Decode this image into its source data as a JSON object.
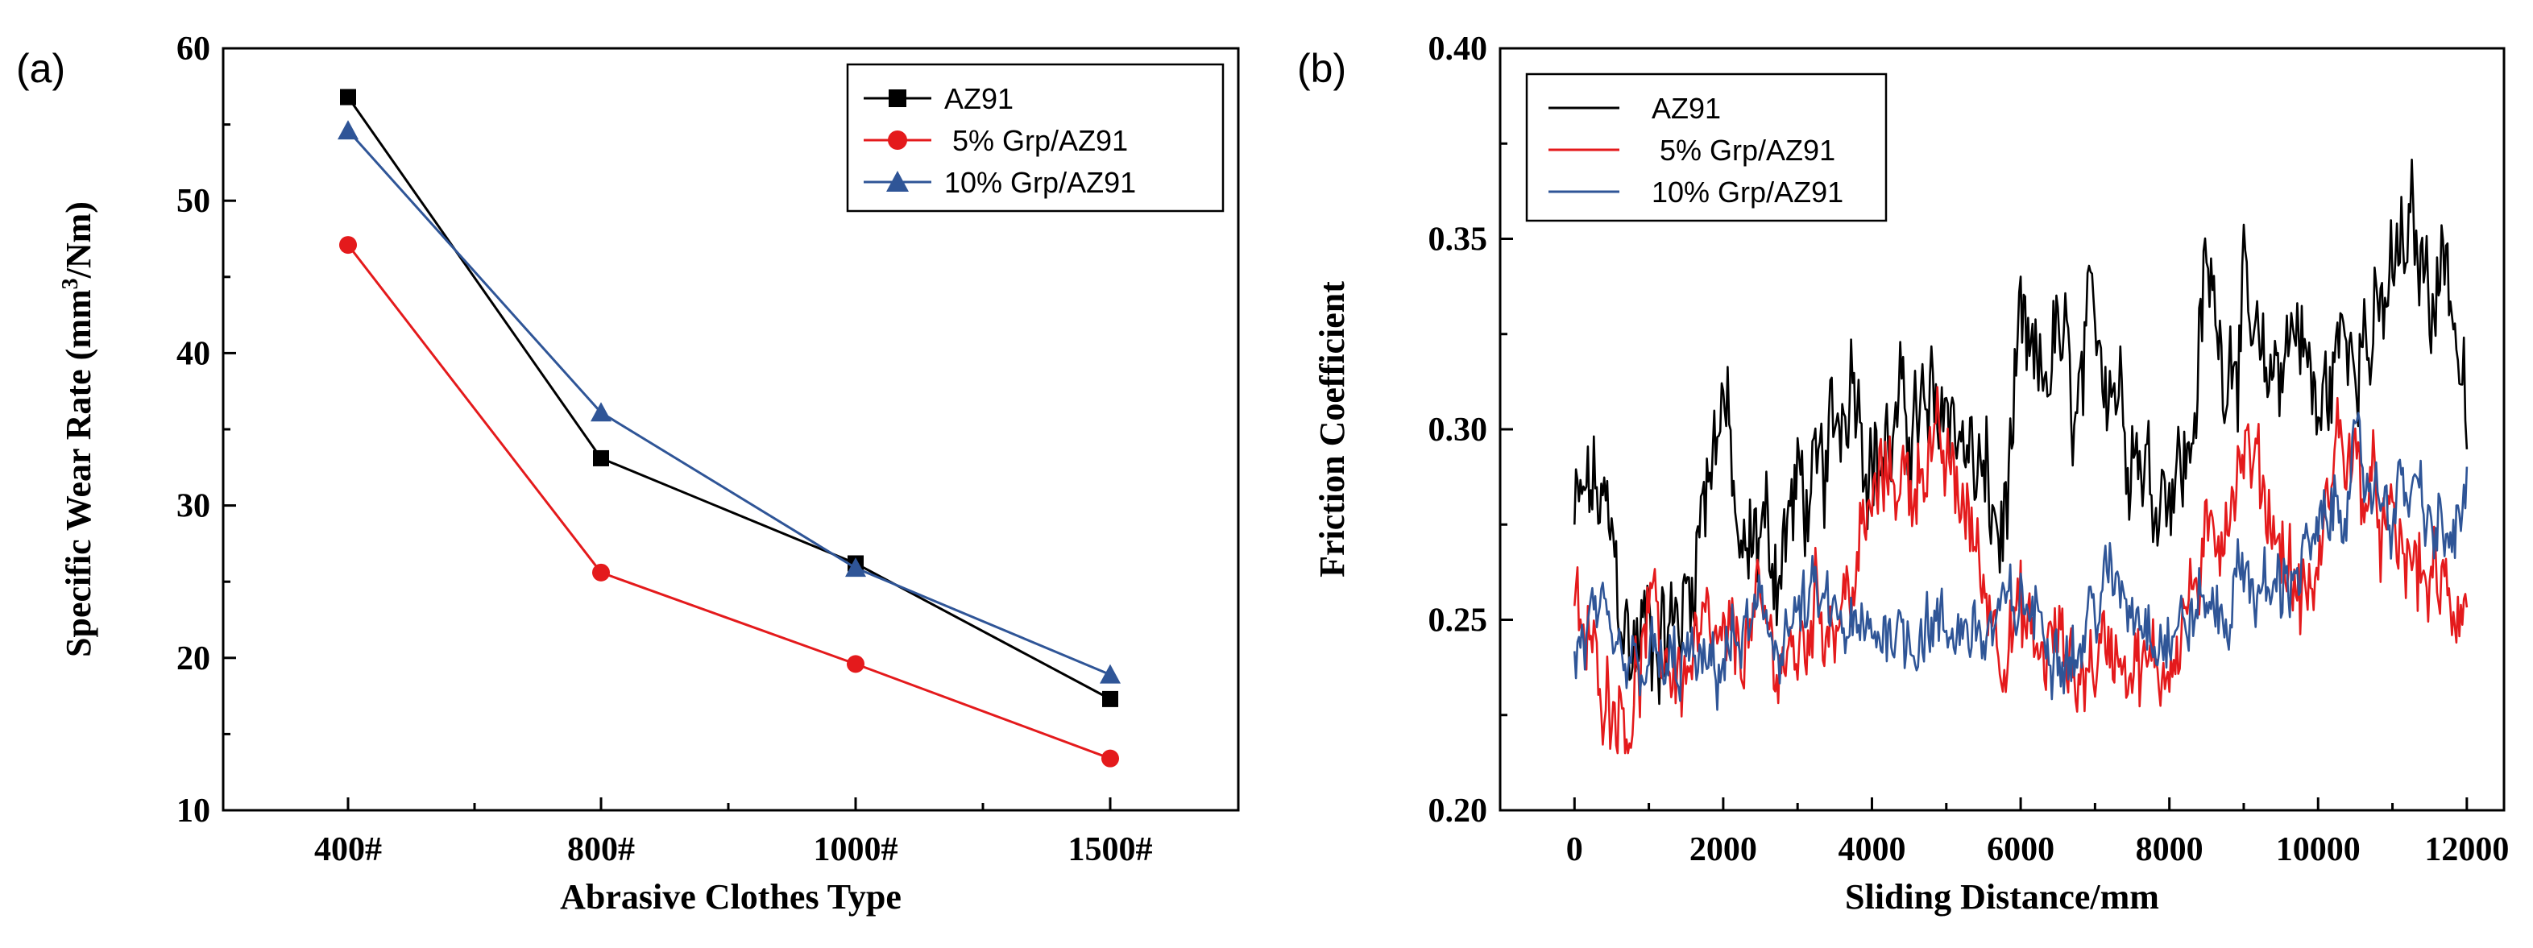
{
  "chart_data": [
    {
      "panel_label": "(a)",
      "type": "line",
      "title": "",
      "categories": [
        "400#",
        "800#",
        "1000#",
        "1500#"
      ],
      "xlabel": "Abrasive Clothes  Type",
      "ylabel": "Specific  Wear Rate (mm³/Nm)",
      "ylabel_parts": [
        "Specific  Wear Rate (mm",
        "3",
        "/Nm)"
      ],
      "ylim": [
        10,
        60
      ],
      "yticks": [
        10,
        20,
        30,
        40,
        50,
        60
      ],
      "ytick_labels": [
        "10",
        "20",
        "30",
        "40",
        "50",
        "60"
      ],
      "grid": false,
      "legend_position": "top-right",
      "series": [
        {
          "name": "AZ91",
          "color": "#000000",
          "marker": "square",
          "values": [
            56.8,
            33.1,
            26.2,
            17.3
          ]
        },
        {
          "name": " 5% Grp/AZ91",
          "color": "#e41a1c",
          "marker": "circle",
          "values": [
            47.1,
            25.6,
            19.6,
            13.4
          ]
        },
        {
          "name": "10% Grp/AZ91",
          "color": "#2f5597",
          "marker": "triangle",
          "values": [
            54.6,
            36.1,
            25.9,
            18.9
          ]
        }
      ]
    },
    {
      "panel_label": "(b)",
      "type": "line",
      "title": "",
      "xlabel": "Sliding Distance/mm",
      "ylabel": "Friction Coefficient",
      "xlim": [
        -1000,
        12500
      ],
      "xticks": [
        0,
        2000,
        4000,
        6000,
        8000,
        10000,
        12000
      ],
      "xtick_labels": [
        "0",
        "2000",
        "4000",
        "6000",
        "8000",
        "10000",
        "12000"
      ],
      "ylim": [
        0.2,
        0.4
      ],
      "yticks": [
        0.2,
        0.25,
        0.3,
        0.35,
        0.4
      ],
      "ytick_labels": [
        "0.20",
        "0.25",
        "0.30",
        "0.35",
        "0.40"
      ],
      "grid": false,
      "legend_position": "top-left",
      "series": [
        {
          "name": "AZ91",
          "color": "#000000",
          "x": [
            0,
            250,
            500,
            750,
            1000,
            1250,
            1500,
            1750,
            2000,
            2250,
            2500,
            2750,
            3000,
            3250,
            3500,
            3750,
            4000,
            4250,
            4500,
            4750,
            5000,
            5250,
            5500,
            5750,
            6000,
            6250,
            6500,
            6750,
            7000,
            7250,
            7500,
            7750,
            8000,
            8250,
            8500,
            8750,
            9000,
            9250,
            9500,
            9750,
            10000,
            10250,
            10500,
            10750,
            11000,
            11250,
            11500,
            11750,
            12000
          ],
          "values": [
            0.275,
            0.285,
            0.27,
            0.24,
            0.25,
            0.245,
            0.255,
            0.285,
            0.31,
            0.26,
            0.275,
            0.265,
            0.285,
            0.28,
            0.3,
            0.32,
            0.29,
            0.295,
            0.305,
            0.3,
            0.31,
            0.295,
            0.285,
            0.27,
            0.32,
            0.31,
            0.325,
            0.3,
            0.33,
            0.315,
            0.3,
            0.285,
            0.29,
            0.29,
            0.34,
            0.32,
            0.33,
            0.31,
            0.32,
            0.33,
            0.3,
            0.32,
            0.33,
            0.32,
            0.34,
            0.35,
            0.34,
            0.345,
            0.3
          ]
        },
        {
          "name": " 5% Grp/AZ91",
          "color": "#e41a1c",
          "x": [
            0,
            250,
            500,
            750,
            1000,
            1250,
            1500,
            1750,
            2000,
            2250,
            2500,
            2750,
            3000,
            3250,
            3500,
            3750,
            4000,
            4250,
            4500,
            4750,
            5000,
            5250,
            5500,
            5750,
            6000,
            6250,
            6500,
            6750,
            7000,
            7250,
            7500,
            7750,
            8000,
            8250,
            8500,
            8750,
            9000,
            9250,
            9500,
            9750,
            10000,
            10250,
            10500,
            10750,
            11000,
            11250,
            11500,
            11750,
            12000
          ],
          "values": [
            0.25,
            0.24,
            0.23,
            0.225,
            0.25,
            0.24,
            0.235,
            0.245,
            0.24,
            0.245,
            0.25,
            0.24,
            0.24,
            0.255,
            0.25,
            0.26,
            0.28,
            0.29,
            0.285,
            0.295,
            0.29,
            0.28,
            0.26,
            0.245,
            0.25,
            0.24,
            0.245,
            0.235,
            0.24,
            0.245,
            0.24,
            0.235,
            0.24,
            0.255,
            0.265,
            0.28,
            0.295,
            0.285,
            0.27,
            0.255,
            0.26,
            0.3,
            0.29,
            0.28,
            0.27,
            0.265,
            0.26,
            0.255,
            0.255
          ]
        },
        {
          "name": "10% Grp/AZ91",
          "color": "#2f5597",
          "x": [
            0,
            250,
            500,
            750,
            1000,
            1250,
            1500,
            1750,
            2000,
            2250,
            2500,
            2750,
            3000,
            3250,
            3500,
            3750,
            4000,
            4250,
            4500,
            4750,
            5000,
            5250,
            5500,
            5750,
            6000,
            6250,
            6500,
            6750,
            7000,
            7250,
            7500,
            7750,
            8000,
            8250,
            8500,
            8750,
            9000,
            9250,
            9500,
            9750,
            10000,
            10250,
            10500,
            10750,
            11000,
            11250,
            11500,
            11750,
            12000
          ],
          "values": [
            0.24,
            0.25,
            0.24,
            0.235,
            0.24,
            0.235,
            0.24,
            0.235,
            0.24,
            0.245,
            0.25,
            0.245,
            0.25,
            0.255,
            0.25,
            0.245,
            0.245,
            0.25,
            0.245,
            0.25,
            0.245,
            0.25,
            0.245,
            0.25,
            0.255,
            0.25,
            0.245,
            0.24,
            0.255,
            0.26,
            0.255,
            0.25,
            0.245,
            0.25,
            0.255,
            0.25,
            0.265,
            0.255,
            0.26,
            0.265,
            0.27,
            0.28,
            0.29,
            0.285,
            0.28,
            0.285,
            0.275,
            0.27,
            0.28
          ]
        }
      ]
    }
  ]
}
